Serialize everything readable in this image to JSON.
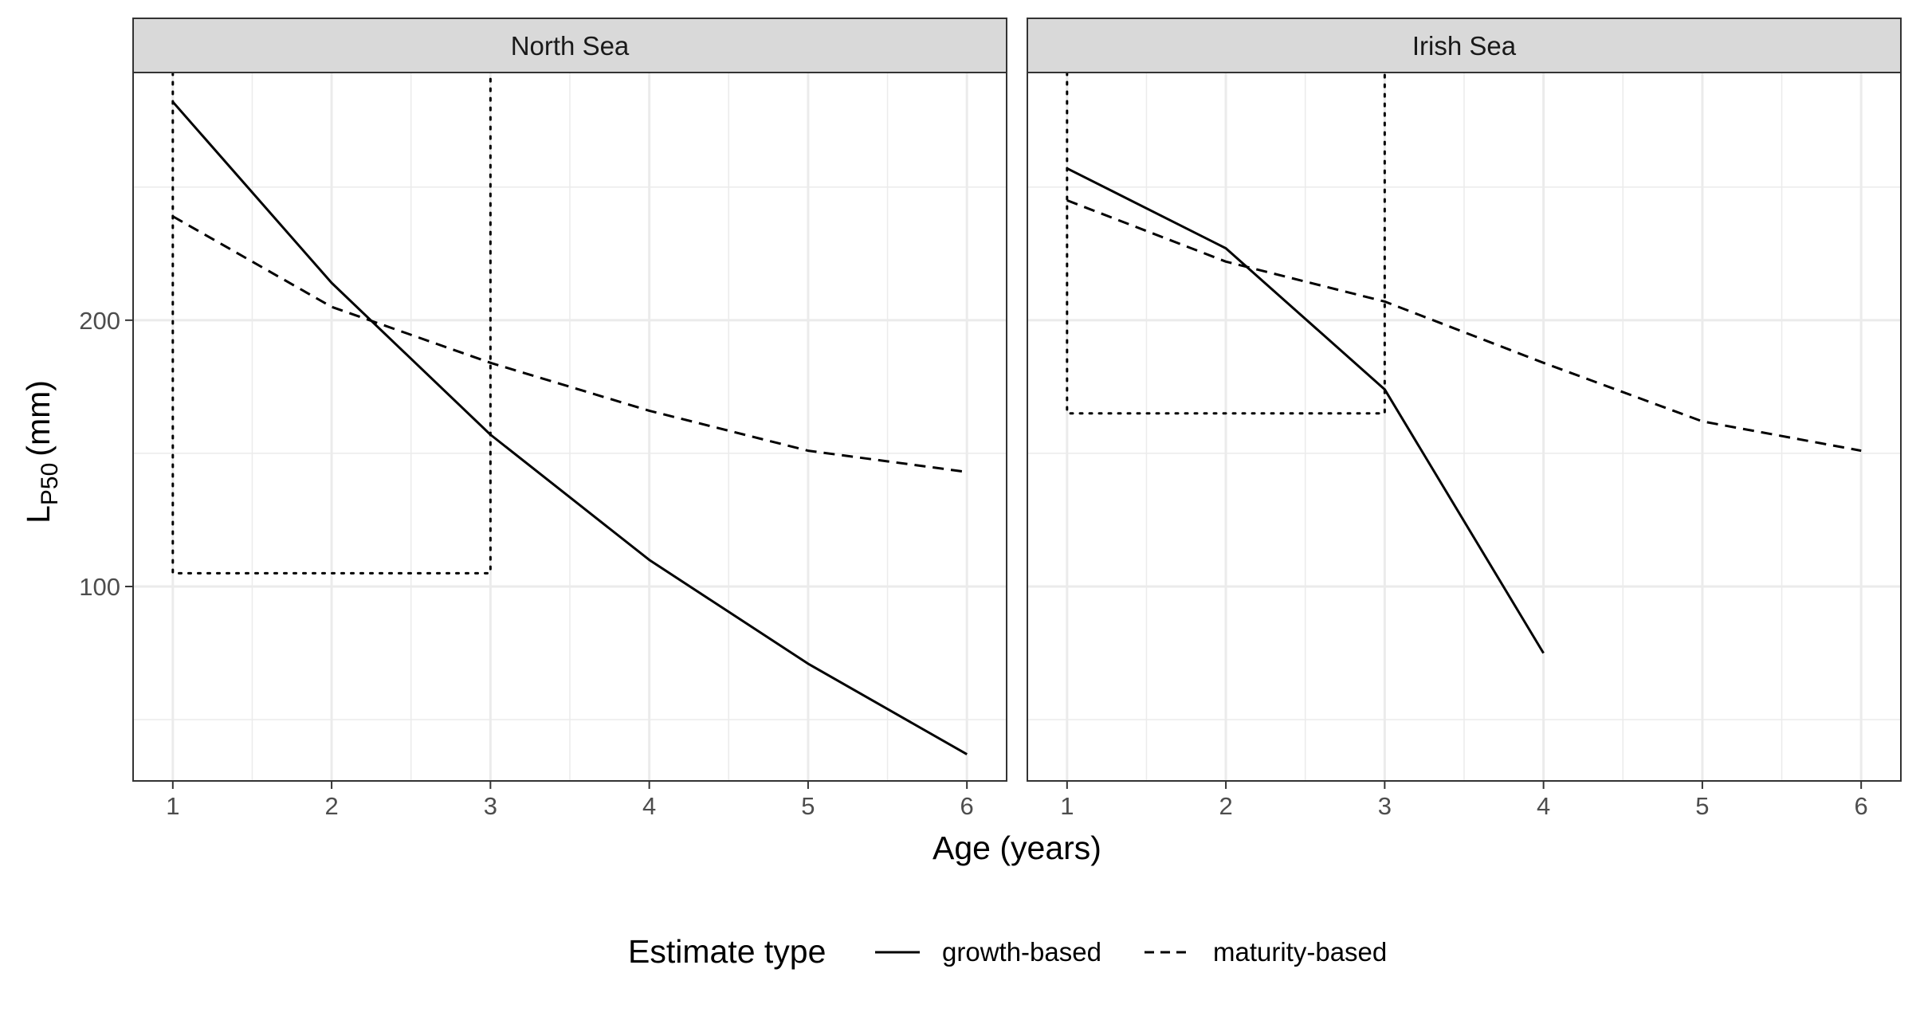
{
  "chart_data": {
    "type": "line",
    "facets": [
      "North Sea",
      "Irish Sea"
    ],
    "xlabel": "Age (years)",
    "ylabel_main": "L",
    "ylabel_sub": "P50",
    "ylabel_unit": "(mm)",
    "xlim": [
      0.75,
      6.25
    ],
    "ylim": [
      27,
      293
    ],
    "x_ticks": [
      1,
      2,
      3,
      4,
      5,
      6
    ],
    "y_ticks": [
      100,
      200
    ],
    "grid": true,
    "legend": {
      "title": "Estimate type",
      "position": "bottom",
      "entries": [
        {
          "label": "growth-based",
          "linetype": "solid"
        },
        {
          "label": "maturity-based",
          "linetype": "dashed"
        }
      ]
    },
    "panels": [
      {
        "name": "North Sea",
        "series": [
          {
            "name": "growth-based",
            "linetype": "solid",
            "x": [
              1,
              2,
              3,
              4,
              5,
              6
            ],
            "y": [
              282,
              214,
              157,
              110,
              71,
              37
            ]
          },
          {
            "name": "maturity-based",
            "linetype": "dashed",
            "x": [
              1,
              2,
              3,
              4,
              5,
              6
            ],
            "y": [
              239,
              205,
              184,
              166,
              151,
              143
            ]
          }
        ],
        "reference_box": {
          "linetype": "dotted",
          "x": [
            1,
            3
          ],
          "y": [
            105,
            293
          ]
        }
      },
      {
        "name": "Irish Sea",
        "series": [
          {
            "name": "growth-based",
            "linetype": "solid",
            "x": [
              1,
              2,
              3,
              4
            ],
            "y": [
              257,
              227,
              174,
              75
            ]
          },
          {
            "name": "maturity-based",
            "linetype": "dashed",
            "x": [
              1,
              2,
              3,
              4,
              5,
              6
            ],
            "y": [
              245,
              222,
              207,
              184,
              162,
              151
            ]
          }
        ],
        "reference_box": {
          "linetype": "dotted",
          "x": [
            1,
            3
          ],
          "y": [
            165,
            293
          ]
        }
      }
    ]
  }
}
